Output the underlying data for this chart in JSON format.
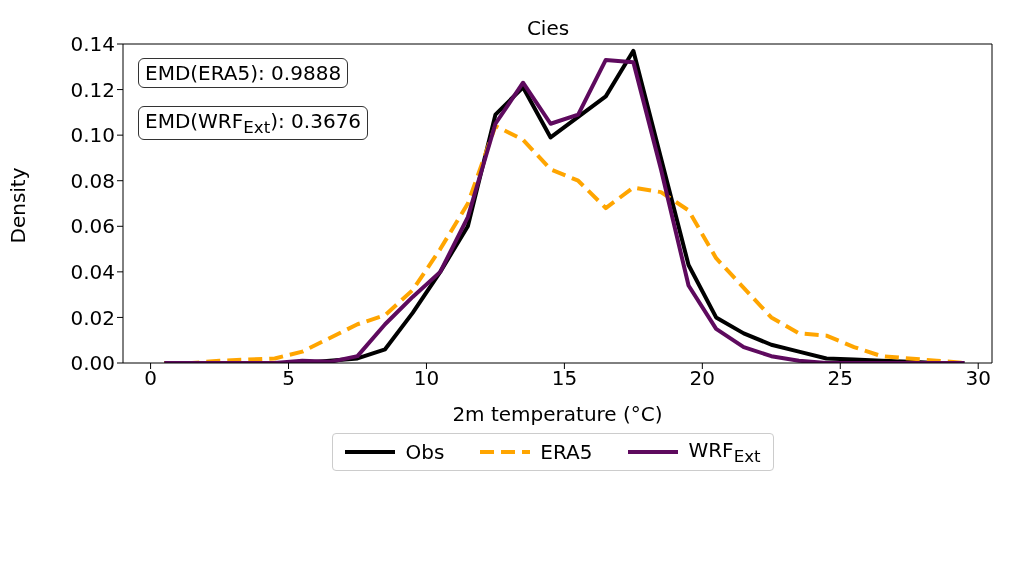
{
  "chart_data": {
    "type": "line",
    "title": "Cies",
    "xlabel": "2m temperature (°C)",
    "ylabel": "Density",
    "x": [
      0.5,
      1.5,
      2.5,
      3.5,
      4.5,
      5.5,
      6.5,
      7.5,
      8.5,
      9.5,
      10.5,
      11.5,
      12.5,
      13.5,
      14.5,
      15.5,
      16.5,
      17.5,
      18.5,
      19.5,
      20.5,
      21.5,
      22.5,
      23.5,
      24.5,
      25.5,
      26.5,
      27.5,
      28.5,
      29.5
    ],
    "series": [
      {
        "name": "Obs",
        "color": "#000000",
        "line_style": "solid",
        "values": [
          0,
          0,
          0,
          0,
          0,
          0,
          0.001,
          0.002,
          0.006,
          0.022,
          0.04,
          0.06,
          0.109,
          0.121,
          0.099,
          0.108,
          0.117,
          0.137,
          0.09,
          0.043,
          0.02,
          0.013,
          0.008,
          0.005,
          0.002,
          0.0015,
          0.001,
          0.0005,
          0,
          0
        ]
      },
      {
        "name": "ERA5",
        "color": "#ffa500",
        "line_style": "dashed",
        "values": [
          0,
          0,
          0.001,
          0.0015,
          0.002,
          0.005,
          0.011,
          0.017,
          0.021,
          0.032,
          0.05,
          0.07,
          0.104,
          0.098,
          0.085,
          0.08,
          0.068,
          0.077,
          0.075,
          0.067,
          0.046,
          0.033,
          0.02,
          0.013,
          0.012,
          0.007,
          0.003,
          0.002,
          0.001,
          0
        ]
      },
      {
        "name": "WRF$_{Ext}$",
        "color": "#5e0a5e",
        "line_style": "solid",
        "values": [
          0,
          0,
          0,
          0,
          0,
          0.001,
          0.0005,
          0.003,
          0.017,
          0.029,
          0.04,
          0.064,
          0.105,
          0.123,
          0.105,
          0.109,
          0.133,
          0.132,
          0.085,
          0.034,
          0.015,
          0.007,
          0.003,
          0.001,
          0,
          0,
          0,
          0,
          0,
          0
        ]
      }
    ],
    "xlim": [
      -1,
      30.5
    ],
    "xticks": [
      0,
      5,
      10,
      15,
      20,
      25,
      30
    ],
    "ylim": [
      0,
      0.14
    ],
    "yticks": [
      {
        "value": 0,
        "label": "0.00"
      },
      {
        "value": 0.02,
        "label": "0.02"
      },
      {
        "value": 0.04,
        "label": "0.04"
      },
      {
        "value": 0.06,
        "label": "0.06"
      },
      {
        "value": 0.08,
        "label": "0.08"
      },
      {
        "value": 0.1,
        "label": "0.10"
      },
      {
        "value": 0.12,
        "label": "0.12"
      },
      {
        "value": 0.14,
        "label": "0.14"
      }
    ],
    "annotations": [
      "EMD(ERA5): 0.9888",
      "EMD(WRF$_{Ext}$): 0.3676"
    ],
    "grid": false,
    "legend": "bottom",
    "marker": "none"
  }
}
